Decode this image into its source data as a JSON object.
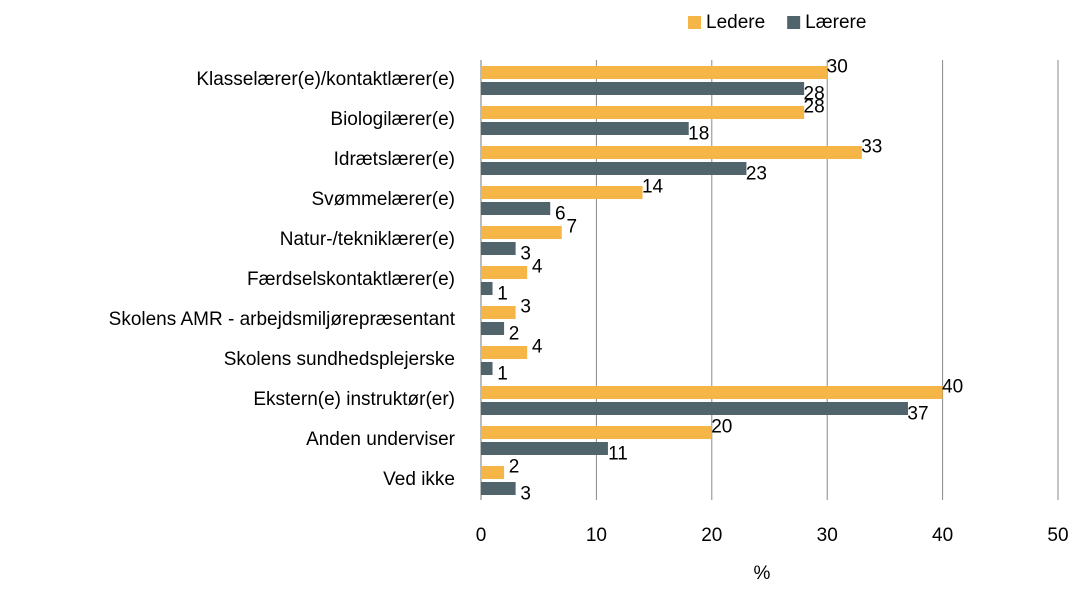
{
  "chart_data": {
    "type": "barh",
    "categories": [
      "Klasselærer(e)/kontaktlærer(e)",
      "Biologilærer(e)",
      "Idrætslærer(e)",
      "Svømmelærer(e)",
      "Natur-/tekniklærer(e)",
      "Færdselskontaktlærer(e)",
      "Skolens AMR - arbejdsmiljørepræsentant",
      "Skolens sundhedsplejerske",
      "Ekstern(e) instruktør(er)",
      "Anden underviser",
      "Ved ikke"
    ],
    "series": [
      {
        "name": "Ledere",
        "color": "#f5b547",
        "values": [
          30,
          28,
          33,
          14,
          7,
          4,
          3,
          4,
          40,
          20,
          2
        ]
      },
      {
        "name": "Lærere",
        "color": "#51636b",
        "values": [
          28,
          18,
          23,
          6,
          3,
          1,
          2,
          1,
          37,
          11,
          3
        ]
      }
    ],
    "xlabel": "%",
    "xlim": [
      0,
      50
    ],
    "xticks": [
      0,
      10,
      20,
      30,
      40,
      50
    ],
    "grid": true,
    "legend": "top"
  }
}
